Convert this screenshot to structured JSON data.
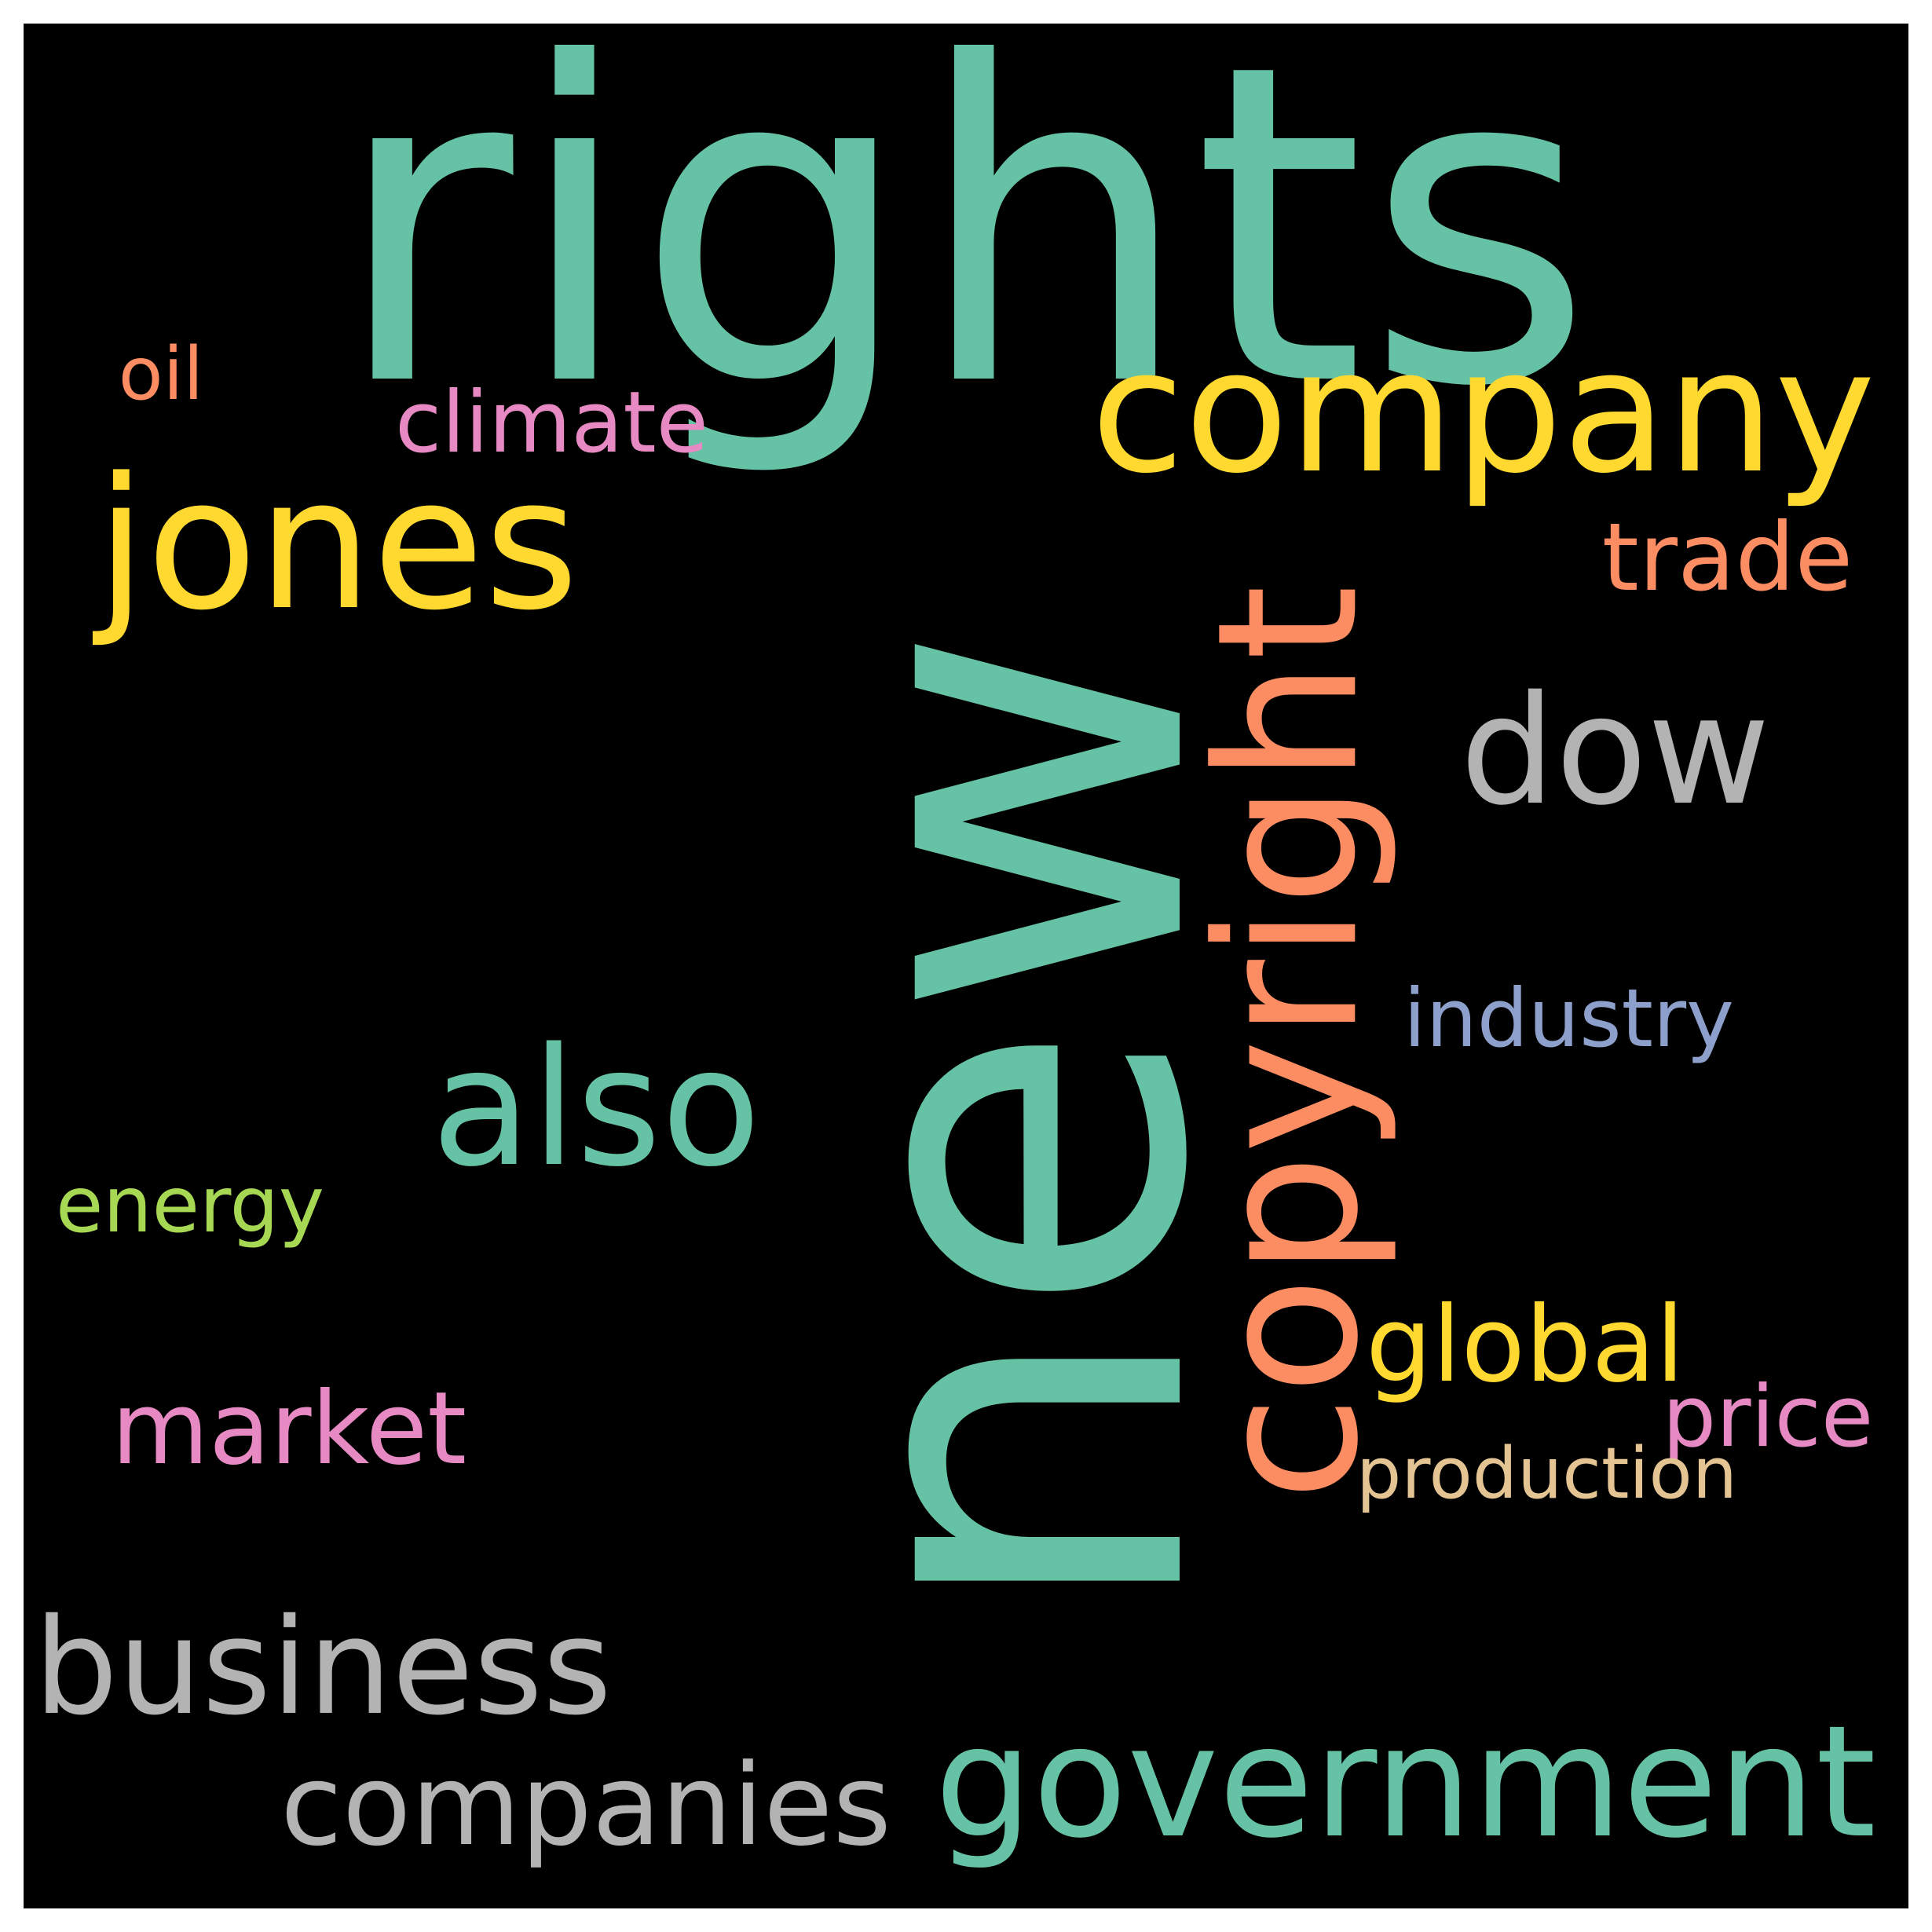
{
  "words": [
    {
      "text": "rights",
      "color": "#66c2a5"
    },
    {
      "text": "new",
      "color": "#66c2a5"
    },
    {
      "text": "company",
      "color": "#ffd92f"
    },
    {
      "text": "jones",
      "color": "#ffd92f"
    },
    {
      "text": "copyright",
      "color": "#fc8d62"
    },
    {
      "text": "dow",
      "color": "#b3b3b3"
    },
    {
      "text": "also",
      "color": "#66c2a5"
    },
    {
      "text": "government",
      "color": "#66c2a5"
    },
    {
      "text": "business",
      "color": "#b3b3b3"
    },
    {
      "text": "companies",
      "color": "#b3b3b3"
    },
    {
      "text": "market",
      "color": "#e78ac3"
    },
    {
      "text": "global",
      "color": "#ffd92f"
    },
    {
      "text": "trade",
      "color": "#fc8d62"
    },
    {
      "text": "industry",
      "color": "#8da0cb"
    },
    {
      "text": "price",
      "color": "#e78ac3"
    },
    {
      "text": "production",
      "color": "#e5c494"
    },
    {
      "text": "energy",
      "color": "#a6d854"
    },
    {
      "text": "climate",
      "color": "#e78ac3"
    },
    {
      "text": "oil",
      "color": "#fc8d62"
    }
  ]
}
